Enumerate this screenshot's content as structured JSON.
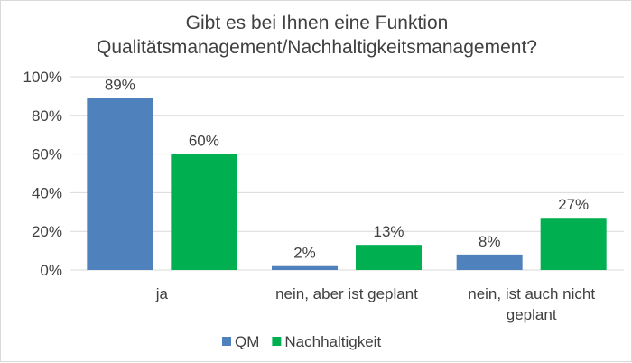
{
  "chart_data": {
    "type": "bar",
    "title": [
      "Gibt es bei Ihnen eine Funktion",
      "Qualitätsmanagement/Nachhaltigkeitsmanagement?"
    ],
    "categories": [
      [
        "ja"
      ],
      [
        "nein, aber ist geplant"
      ],
      [
        "nein, ist auch nicht",
        "geplant"
      ]
    ],
    "series": [
      {
        "name": "QM",
        "color": "#4F81BD",
        "values": [
          89,
          2,
          8
        ],
        "labels": [
          "89%",
          "2%",
          "8%"
        ]
      },
      {
        "name": "Nachhaltigkeit",
        "color": "#00B050",
        "values": [
          60,
          13,
          27
        ],
        "labels": [
          "60%",
          "13%",
          "27%"
        ]
      }
    ],
    "yticks": [
      0,
      20,
      40,
      60,
      80,
      100
    ],
    "ytick_labels": [
      "0%",
      "20%",
      "40%",
      "60%",
      "80%",
      "100%"
    ],
    "ylim": [
      0,
      100
    ],
    "grid": true,
    "legend": "bottom"
  }
}
